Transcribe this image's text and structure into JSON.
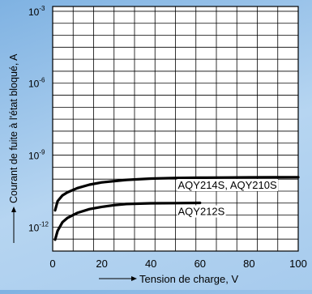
{
  "chart_data": {
    "type": "line",
    "xlabel": "Tension de charge, V",
    "ylabel": "Courant de fuite à l'état bloqué, A",
    "xlim": [
      0,
      100
    ],
    "ylim_log10": [
      -13,
      -2.8
    ],
    "y_scale": "log",
    "grid": true,
    "x_ticks": [
      0,
      20,
      40,
      60,
      80,
      100
    ],
    "y_ticks": [
      {
        "base": "10",
        "exp": "-3",
        "log10": -3
      },
      {
        "base": "10",
        "exp": "-6",
        "log10": -6
      },
      {
        "base": "10",
        "exp": "-9",
        "log10": -9
      },
      {
        "base": "10",
        "exp": "-12",
        "log10": -12
      }
    ],
    "series": [
      {
        "name": "AQY214S, AQY210S",
        "x": [
          1,
          2,
          4,
          6,
          10,
          15,
          20,
          30,
          40,
          50,
          60,
          70,
          80,
          90,
          100
        ],
        "y": [
          5e-12,
          1.2e-11,
          2.1e-11,
          2.8e-11,
          4.2e-11,
          5.9e-11,
          7.3e-11,
          9.3e-11,
          1.05e-10,
          1.12e-10,
          1.15e-10,
          1.17e-10,
          1.18e-10,
          1.19e-10,
          1.2e-10
        ]
      },
      {
        "name": "AQY212S",
        "x": [
          1,
          2,
          4,
          6,
          10,
          15,
          20,
          25,
          30,
          40,
          50,
          60
        ],
        "y": [
          3e-13,
          7e-13,
          1.6e-12,
          2.4e-12,
          3.9e-12,
          5.6e-12,
          7e-12,
          8.2e-12,
          9.2e-12,
          9.8e-12,
          1e-11,
          1.02e-11
        ]
      }
    ],
    "annotations": [
      {
        "text": "AQY214S, AQY210S",
        "x": 51,
        "y_log10": -10.4
      },
      {
        "text": "AQY212S",
        "x": 51,
        "y_log10": -11.5
      }
    ]
  },
  "colors": {
    "curve": "#000000",
    "grid": "#000000",
    "plot_bg": "#ffffff"
  }
}
